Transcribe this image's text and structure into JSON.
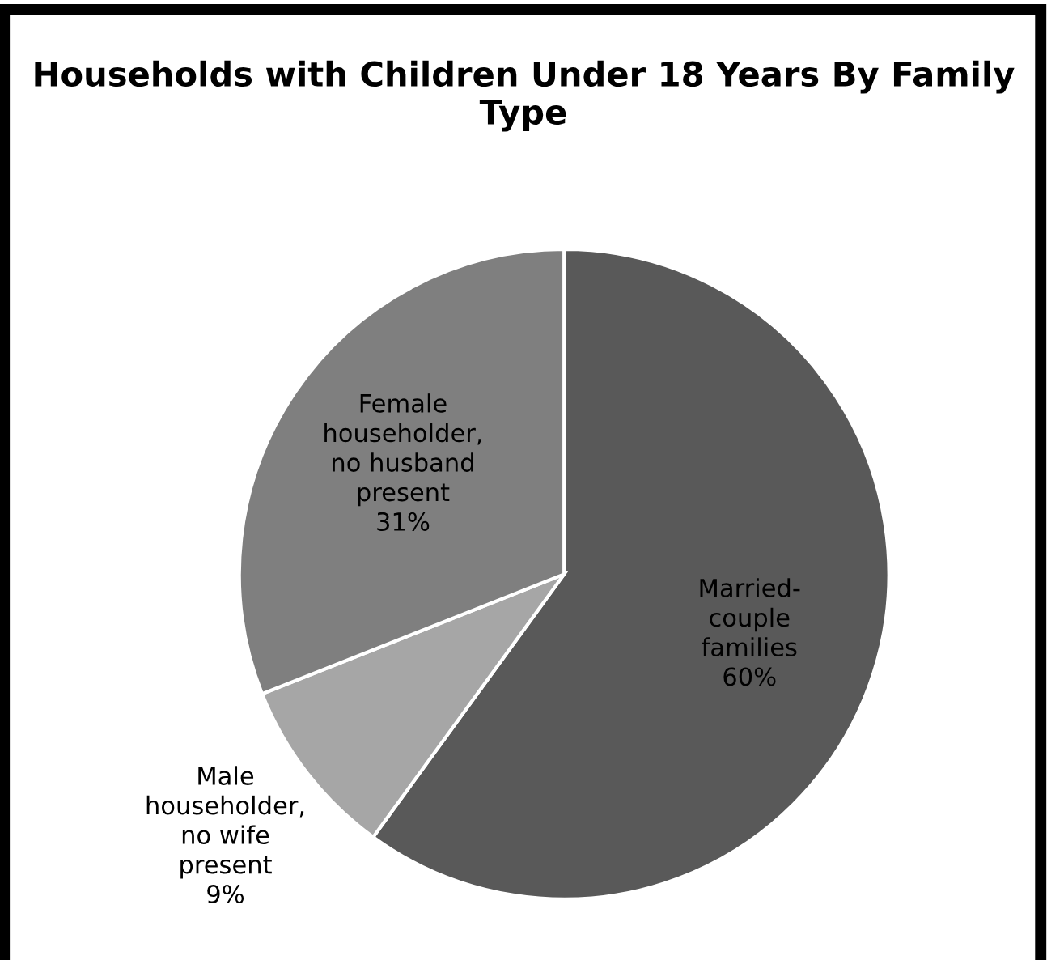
{
  "chart_data": {
    "type": "pie",
    "title": "Households with Children Under 18 Years By Family Type",
    "categories": [
      "Married-\ncouple\nfamilies",
      "Male\nhouseholder,\nno wife\npresent",
      "Female\nhouseholder,\nno husband\npresent"
    ],
    "values": [
      60,
      9,
      31
    ],
    "value_labels": [
      "60%",
      "9%",
      "31%"
    ],
    "colors": [
      "#595959",
      "#a6a6a6",
      "#7f7f7f"
    ]
  }
}
